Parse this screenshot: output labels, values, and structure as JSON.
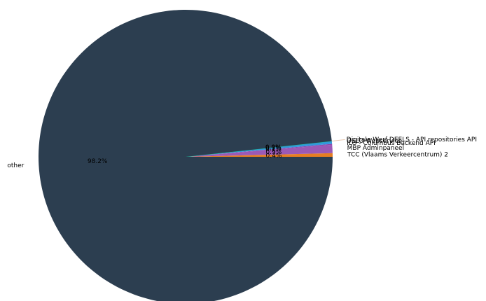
{
  "chart_data": {
    "type": "pie",
    "title": "",
    "start_angle_deg": 0,
    "direction": "counterclockwise",
    "slices": [
      {
        "label": "TCC (Vlaams Verkeercentrum) 2",
        "value": 0.4,
        "pct_label": "0.4%",
        "color": "#e67e22"
      },
      {
        "label": "MBP Adminpaneel",
        "value": 0.9,
        "pct_label": "0.9%",
        "color": "#9b59b6"
      },
      {
        "label": "ILO - Columbus Backend API",
        "value": 0.1,
        "pct_label": "0.1%",
        "color": "#8e44ad"
      },
      {
        "label": "OSLO Webservice",
        "value": 0.3,
        "pct_label": "0.3%",
        "color": "#3498db"
      },
      {
        "label": "Digitale Werf DEELS - API repositories API",
        "value": 0.0,
        "pct_label": "0.0%",
        "color": "#1abc9c"
      },
      {
        "label": "other",
        "value": 98.2,
        "pct_label": "98.2%",
        "color": "#2c3e50"
      }
    ]
  }
}
